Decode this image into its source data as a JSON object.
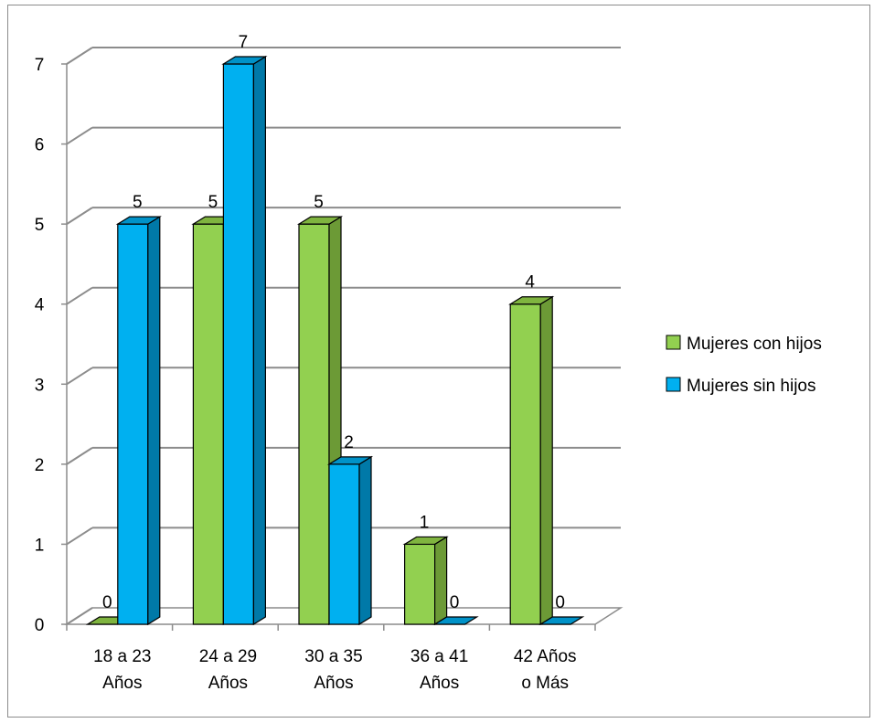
{
  "chart_data": {
    "type": "bar",
    "title": "",
    "xlabel": "",
    "ylabel": "",
    "ylim": [
      0,
      7
    ],
    "yticks": [
      "0",
      "1",
      "2",
      "3",
      "4",
      "5",
      "6",
      "7"
    ],
    "categories": [
      [
        "18 a 23",
        "Años"
      ],
      [
        "24 a 29",
        "Años"
      ],
      [
        "30 a 35",
        "Años"
      ],
      [
        "36 a 41",
        "Años"
      ],
      [
        "42 Años",
        "o Más"
      ]
    ],
    "series": [
      {
        "name": "Mujeres con hijos",
        "values": [
          0,
          5,
          5,
          1,
          4
        ],
        "color": "#92D050",
        "side_color": "#6C9A36",
        "top_color": "#7FB43F"
      },
      {
        "name": "Mujeres sin hijos",
        "values": [
          5,
          7,
          2,
          0,
          0
        ],
        "color": "#00B0F0",
        "side_color": "#0079A8",
        "top_color": "#0092C8"
      }
    ],
    "grid": true,
    "legend_position": "right",
    "three_d": true
  }
}
